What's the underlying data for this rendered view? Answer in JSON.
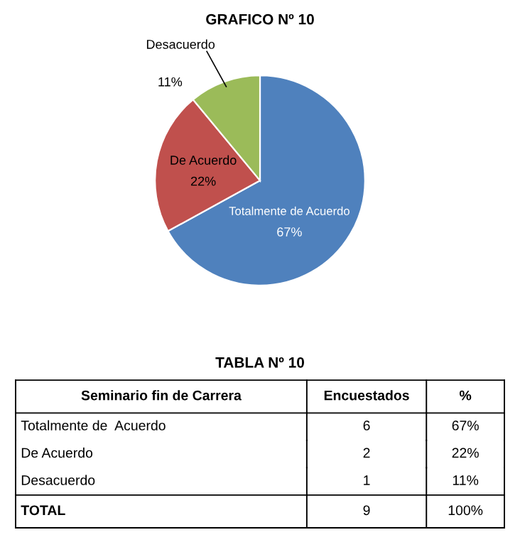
{
  "chart_data": {
    "type": "pie",
    "title": "GRAFICO Nº 10",
    "categories": [
      "Totalmente de Acuerdo",
      "De Acuerdo",
      "Desacuerdo"
    ],
    "values": [
      67,
      22,
      11
    ],
    "colors": [
      "#4f81bd",
      "#c0504d",
      "#9bbb59"
    ],
    "value_labels": [
      "67%",
      "22%",
      "11%"
    ],
    "legend": false,
    "annotations": [
      "TABLA Nº 10",
      "Seminario fin de Carrera",
      "Encuestados",
      "%",
      "Totalmente de  Acuerdo",
      "6",
      "67%",
      "De Acuerdo",
      "2",
      "22%",
      "Desacuerdo",
      "1",
      "11%",
      "TOTAL",
      "9",
      "100%"
    ]
  }
}
